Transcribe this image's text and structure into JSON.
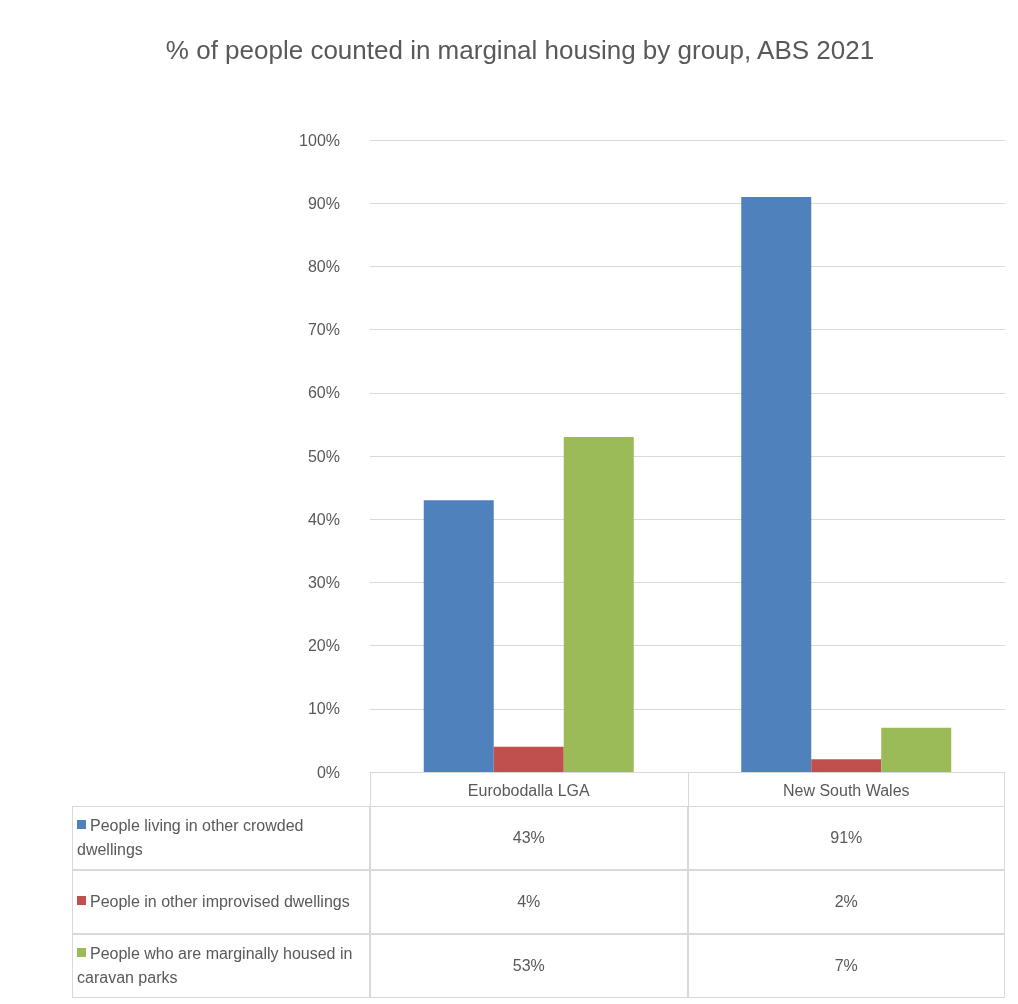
{
  "chart_data": {
    "type": "bar",
    "title": "% of people counted in marginal housing by group, ABS 2021",
    "categories": [
      "Eurobodalla LGA",
      "New South Wales"
    ],
    "series": [
      {
        "name": "People living in other crowded dwellings",
        "color": "#4f81bd",
        "values": [
          43,
          91
        ],
        "value_labels": [
          "43%",
          "91%"
        ]
      },
      {
        "name": "People in other improvised dwellings",
        "color": "#c0504d",
        "values": [
          4,
          2
        ],
        "value_labels": [
          "4%",
          "2%"
        ]
      },
      {
        "name": "People who are marginally housed in caravan parks",
        "color": "#9bbb59",
        "values": [
          53,
          7
        ],
        "value_labels": [
          "53%",
          "7%"
        ]
      }
    ],
    "ylim": [
      0,
      100
    ],
    "yticks": [
      {
        "value": 0,
        "label": "0%"
      },
      {
        "value": 10,
        "label": "10%"
      },
      {
        "value": 20,
        "label": "20%"
      },
      {
        "value": 30,
        "label": "30%"
      },
      {
        "value": 40,
        "label": "40%"
      },
      {
        "value": 50,
        "label": "50%"
      },
      {
        "value": 60,
        "label": "60%"
      },
      {
        "value": 70,
        "label": "70%"
      },
      {
        "value": 80,
        "label": "80%"
      },
      {
        "value": 90,
        "label": "90%"
      },
      {
        "value": 100,
        "label": "100%"
      }
    ],
    "grid": "y",
    "legend": "bottom"
  }
}
